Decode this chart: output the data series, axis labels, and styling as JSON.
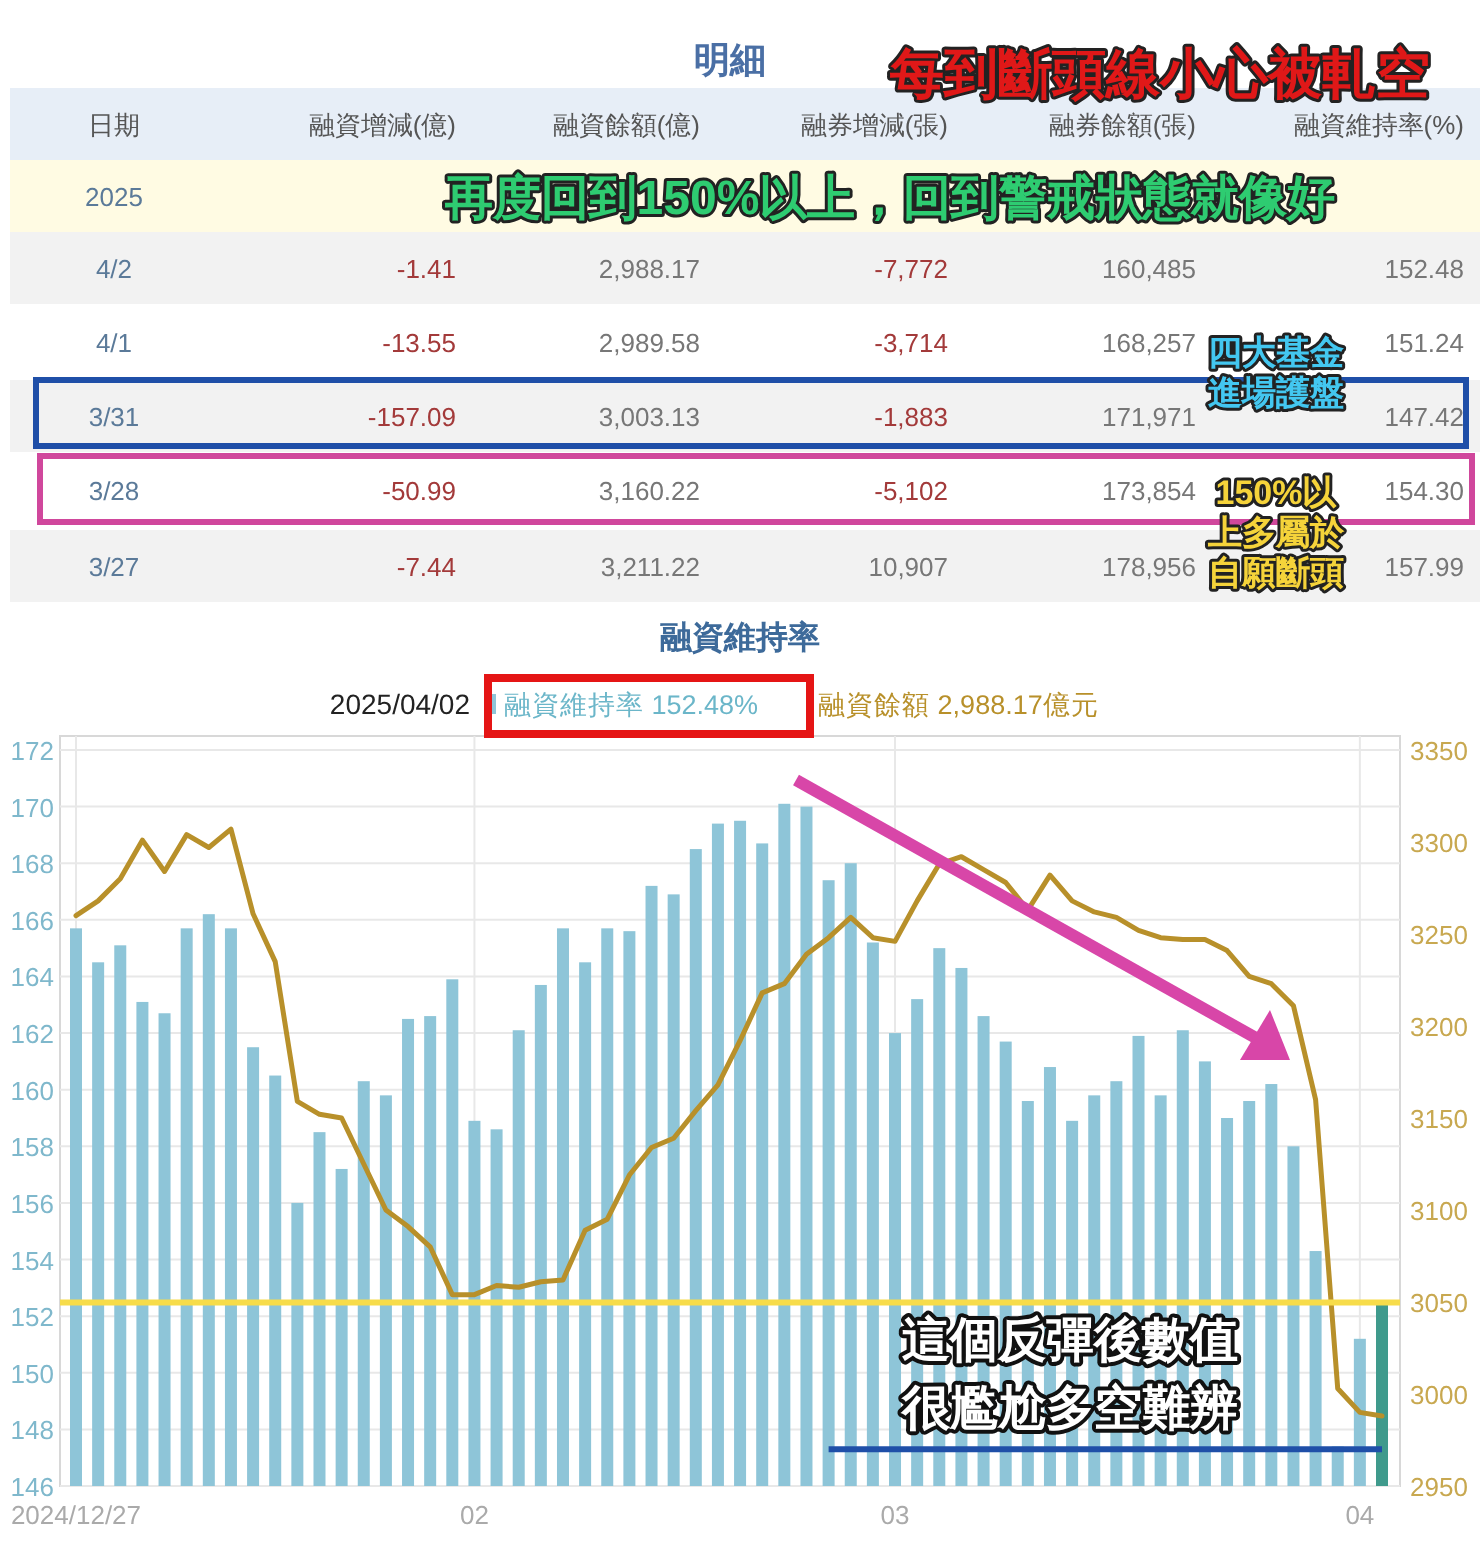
{
  "chart_data": [
    {
      "type": "other",
      "title": "明細",
      "categories": [
        "日期",
        "融資增減(億)",
        "融資餘額(億)",
        "融券增減(張)",
        "融券餘額(張)",
        "融資維持率(%)"
      ],
      "y_categories": [
        "2025",
        "4/2",
        "4/1",
        "3/31",
        "3/28",
        "3/27"
      ],
      "cell_labels": [
        [
          null,
          null,
          null,
          null,
          null
        ],
        [
          "-1.41",
          "2,988.17",
          "-7,772",
          "160,485",
          "152.48"
        ],
        [
          "-13.55",
          "2,989.58",
          "-3,714",
          "168,257",
          "151.24"
        ],
        [
          "-157.09",
          "3,003.13",
          "-1,883",
          "171,971",
          "147.42"
        ],
        [
          "-50.99",
          "3,160.22",
          "-5,102",
          "173,854",
          "154.30"
        ],
        [
          "-7.44",
          "3,211.22",
          "10,907",
          "178,956",
          "157.99"
        ]
      ],
      "annotations": [
        "每到斷頭線小心被軋空",
        "再度回到150%以上，回到警戒狀態就像好",
        "四大基金進場護盤",
        "150%以上多屬於自願斷頭"
      ]
    },
    {
      "type": "bar",
      "title": "融資維持率",
      "categories": [
        "2024/12/27",
        null,
        null,
        null,
        null,
        null,
        null,
        null,
        null,
        null,
        null,
        null,
        null,
        null,
        null,
        null,
        null,
        null,
        "02",
        null,
        null,
        null,
        null,
        null,
        null,
        null,
        null,
        null,
        null,
        null,
        null,
        null,
        null,
        null,
        null,
        null,
        null,
        "03",
        null,
        null,
        null,
        null,
        null,
        null,
        null,
        null,
        null,
        null,
        null,
        null,
        null,
        null,
        null,
        null,
        null,
        null,
        null,
        null,
        "04",
        null
      ],
      "series": [
        {
          "name": "融資維持率 152.48%",
          "color": "#8ec5d8",
          "colors": [
            "#8ec5d8",
            "#8ec5d8",
            "#8ec5d8",
            "#8ec5d8",
            "#8ec5d8",
            "#8ec5d8",
            "#8ec5d8",
            "#8ec5d8",
            "#8ec5d8",
            "#8ec5d8",
            "#8ec5d8",
            "#8ec5d8",
            "#8ec5d8",
            "#8ec5d8",
            "#8ec5d8",
            "#8ec5d8",
            "#8ec5d8",
            "#8ec5d8",
            "#8ec5d8",
            "#8ec5d8",
            "#8ec5d8",
            "#8ec5d8",
            "#8ec5d8",
            "#8ec5d8",
            "#8ec5d8",
            "#8ec5d8",
            "#8ec5d8",
            "#8ec5d8",
            "#8ec5d8",
            "#8ec5d8",
            "#8ec5d8",
            "#8ec5d8",
            "#8ec5d8",
            "#8ec5d8",
            "#8ec5d8",
            "#8ec5d8",
            "#8ec5d8",
            "#8ec5d8",
            "#8ec5d8",
            "#8ec5d8",
            "#8ec5d8",
            "#8ec5d8",
            "#8ec5d8",
            "#8ec5d8",
            "#8ec5d8",
            "#8ec5d8",
            "#8ec5d8",
            "#8ec5d8",
            "#8ec5d8",
            "#8ec5d8",
            "#8ec5d8",
            "#8ec5d8",
            "#8ec5d8",
            "#8ec5d8",
            "#8ec5d8",
            "#8ec5d8",
            "#8ec5d8",
            "#8ec5d8",
            "#8ec5d8",
            "#3f9a8c"
          ],
          "values": [
            165.7,
            164.5,
            165.1,
            163.1,
            162.7,
            165.7,
            166.2,
            165.7,
            161.5,
            160.5,
            156.0,
            158.5,
            157.2,
            160.3,
            159.8,
            162.5,
            162.6,
            163.9,
            158.9,
            158.6,
            162.1,
            163.7,
            165.7,
            164.5,
            165.7,
            165.6,
            167.2,
            166.9,
            168.5,
            169.4,
            169.5,
            168.7,
            170.1,
            170.0,
            167.4,
            168.0,
            165.2,
            162.0,
            163.2,
            165.0,
            164.3,
            162.6,
            161.7,
            159.6,
            160.8,
            158.9,
            159.8,
            160.3,
            161.9,
            159.8,
            162.1,
            161.0,
            159.0,
            159.6,
            160.2,
            158.0,
            154.3,
            147.4,
            151.2,
            152.5
          ]
        },
        {
          "name": "融資餘額 2,988.17億元",
          "type": "line",
          "axis": "y2",
          "color": "#b8902a",
          "values": [
            3260,
            3268,
            3280,
            3301,
            3284,
            3304,
            3297,
            3307,
            3261,
            3235,
            3159,
            3152,
            3150,
            3125,
            3100,
            3091,
            3080,
            3054,
            3054,
            3059,
            3058,
            3061,
            3062,
            3089,
            3095,
            3119,
            3134,
            3139,
            3154,
            3168,
            3192,
            3218,
            3223,
            3239,
            3248,
            3259,
            3248,
            3246,
            3268,
            3288,
            3292,
            3285,
            3278,
            3263,
            3282,
            3268,
            3262,
            3259,
            3252,
            3248,
            3247,
            3247,
            3241,
            3227,
            3223,
            3211,
            3160,
            3003,
            2990,
            2988
          ]
        }
      ],
      "ylim": [
        146,
        172
      ],
      "yticks": [
        146,
        148,
        150,
        152,
        154,
        156,
        158,
        160,
        162,
        164,
        166,
        168,
        170,
        172
      ],
      "y2lim": [
        2950,
        3350
      ],
      "y2ticks": [
        2950,
        3000,
        3050,
        3100,
        3150,
        3200,
        3250,
        3300,
        3350
      ],
      "grid": true,
      "legend": "top",
      "ref_lines": [
        {
          "axis": "y",
          "value": 152.48,
          "color": "#f7dc4a"
        },
        {
          "axis": "y",
          "value": 147.3,
          "color": "#1f4fa8"
        }
      ],
      "annotations": [
        "2025/04/02",
        "這個反彈後數值很尷尬多空難辨"
      ]
    }
  ]
}
